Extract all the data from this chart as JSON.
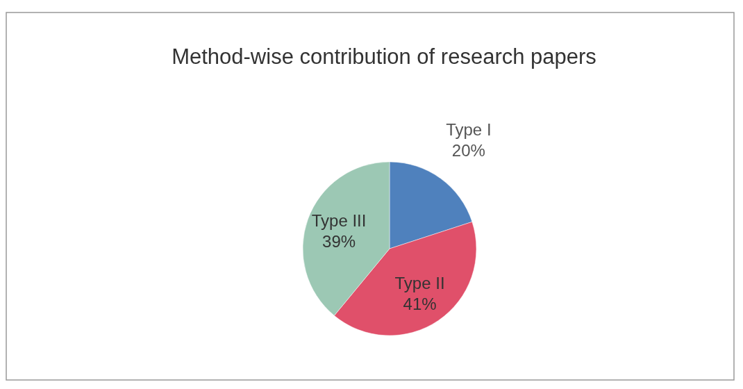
{
  "chart_data": {
    "type": "pie",
    "title": "Method-wise contribution of research papers",
    "categories": [
      "Type I",
      "Type II",
      "Type III"
    ],
    "values": [
      20,
      41,
      39
    ],
    "value_labels": [
      "20%",
      "41%",
      "39%"
    ],
    "colors": [
      "#4f81bd",
      "#e0506a",
      "#9cc8b4"
    ]
  }
}
